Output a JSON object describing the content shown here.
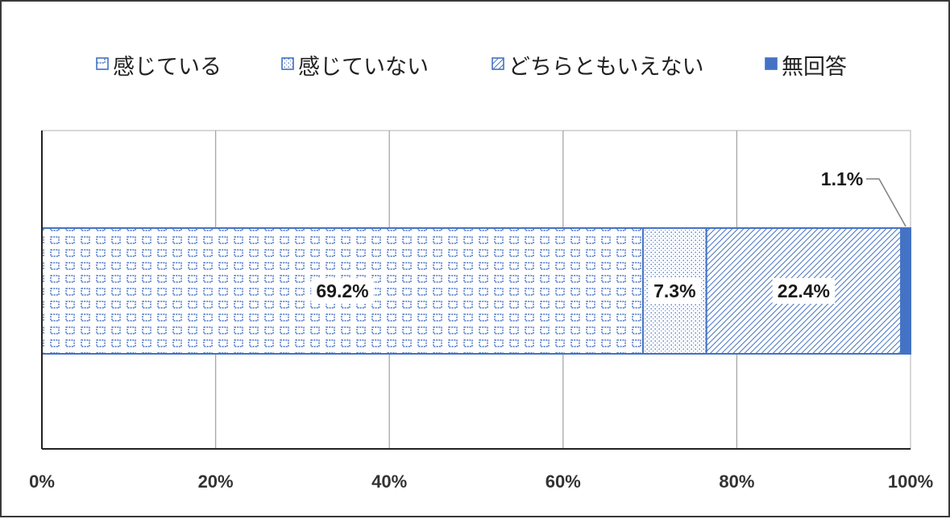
{
  "chart_data": {
    "type": "bar",
    "orientation": "horizontal",
    "stacked": "percent",
    "categories": [
      ""
    ],
    "series": [
      {
        "name": "感じている",
        "values": [
          69.2
        ],
        "label": "69.2%",
        "pattern": "grid",
        "color": "#4472C4"
      },
      {
        "name": "感じていない",
        "values": [
          7.3
        ],
        "label": "7.3%",
        "pattern": "dots",
        "color": "#4472C4"
      },
      {
        "name": "どちらともいえない",
        "values": [
          22.4
        ],
        "label": "22.4%",
        "pattern": "diagonal",
        "color": "#4472C4"
      },
      {
        "name": "無回答",
        "values": [
          1.1
        ],
        "label": "1.1%",
        "pattern": "solid",
        "color": "#4472C4"
      }
    ],
    "xlim": [
      0,
      100
    ],
    "xticks": [
      "0%",
      "20%",
      "40%",
      "60%",
      "80%",
      "100%"
    ],
    "grid": true,
    "legend": "top"
  }
}
